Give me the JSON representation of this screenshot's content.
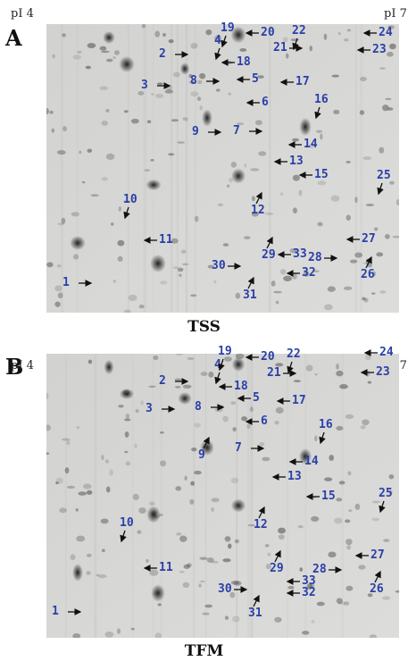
{
  "panels": [
    {
      "letter": "A",
      "pi_left": "pI 4",
      "pi_right": "pI 7",
      "caption": "TSS",
      "labels": [
        "1",
        "2",
        "3",
        "4",
        "5",
        "6",
        "7",
        "8",
        "9",
        "10",
        "11",
        "12",
        "13",
        "14",
        "15",
        "16",
        "17",
        "18",
        "19",
        "20",
        "21",
        "22",
        "23",
        "24",
        "25",
        "26",
        "27",
        "28",
        "29",
        "30",
        "31",
        "32",
        "33"
      ]
    },
    {
      "letter": "B",
      "pi_left": "pI 4",
      "pi_right": "pI 7",
      "caption": "TFM",
      "labels": [
        "1",
        "2",
        "3",
        "4",
        "5",
        "6",
        "7",
        "8",
        "9",
        "10",
        "11",
        "12",
        "13",
        "14",
        "15",
        "16",
        "17",
        "18",
        "19",
        "20",
        "21",
        "22",
        "23",
        "24",
        "25",
        "26",
        "27",
        "28",
        "29",
        "30",
        "31",
        "32",
        "33"
      ]
    }
  ],
  "colors": {
    "label": "#2a3fa8",
    "arrow": "#111111",
    "gel": "#d9d9d7"
  }
}
